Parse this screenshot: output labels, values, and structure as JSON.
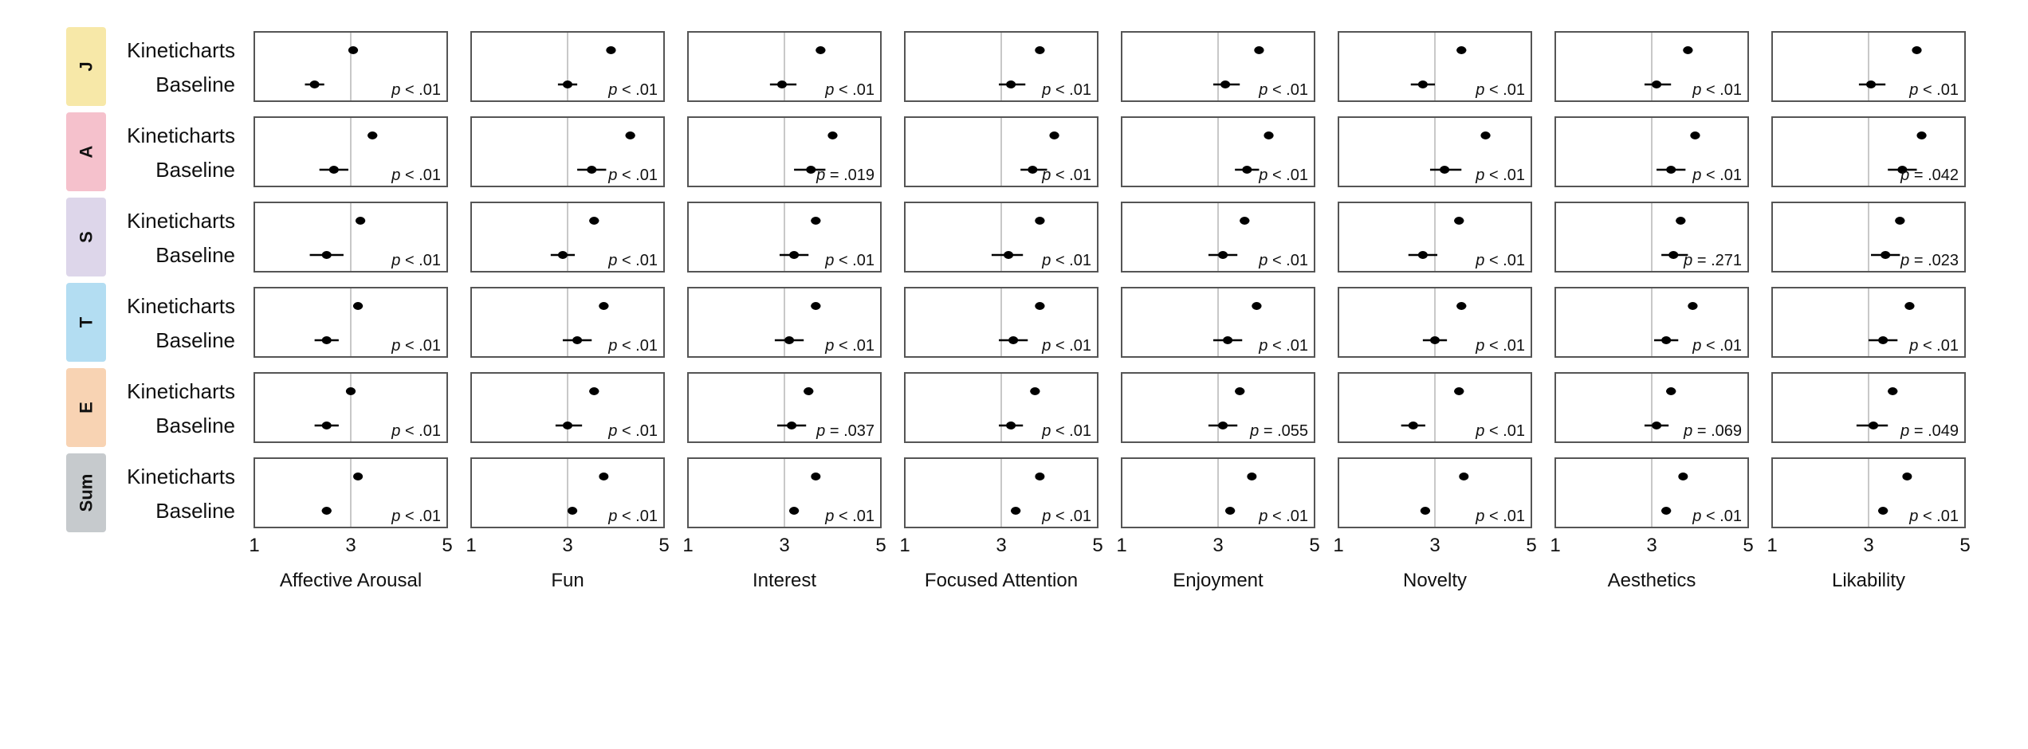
{
  "chart_data": {
    "type": "scatter",
    "variant": "dot-and-interval (mean with confidence interval) small multiples",
    "groups": [
      "J",
      "A",
      "S",
      "T",
      "E",
      "Sum"
    ],
    "group_colors": {
      "J": "#f7e8a8",
      "A": "#f5c1cc",
      "S": "#ddd6ea",
      "T": "#b3ddf2",
      "E": "#f8d3b3",
      "Sum": "#c6cacd"
    },
    "conditions": [
      "Kineticharts",
      "Baseline"
    ],
    "measures": [
      "Affective Arousal",
      "Fun",
      "Interest",
      "Focused Attention",
      "Enjoyment",
      "Novelty",
      "Aesthetics",
      "Likability"
    ],
    "xlim": [
      1,
      5
    ],
    "x_ticks": [
      1,
      3,
      5
    ],
    "reference_line": 3,
    "p_prefix": "p",
    "p_values": [
      [
        "< .01",
        "< .01",
        "< .01",
        "< .01",
        "< .01",
        "< .01",
        "< .01",
        "< .01"
      ],
      [
        "< .01",
        "< .01",
        "= .019",
        "< .01",
        "< .01",
        "< .01",
        "< .01",
        "= .042"
      ],
      [
        "< .01",
        "< .01",
        "< .01",
        "< .01",
        "< .01",
        "< .01",
        "= .271",
        "= .023"
      ],
      [
        "< .01",
        "< .01",
        "< .01",
        "< .01",
        "< .01",
        "< .01",
        "< .01",
        "< .01"
      ],
      [
        "< .01",
        "< .01",
        "= .037",
        "< .01",
        "= .055",
        "< .01",
        "= .069",
        "= .049"
      ],
      [
        "< .01",
        "< .01",
        "< .01",
        "< .01",
        "< .01",
        "< .01",
        "< .01",
        "< .01"
      ]
    ],
    "series": [
      {
        "name": "Kineticharts",
        "means": [
          [
            3.05,
            3.9,
            3.75,
            3.8,
            3.85,
            3.55,
            3.75,
            4.0
          ],
          [
            3.45,
            4.3,
            4.0,
            4.1,
            4.05,
            4.05,
            3.9,
            4.1
          ],
          [
            3.2,
            3.55,
            3.65,
            3.8,
            3.55,
            3.5,
            3.6,
            3.65
          ],
          [
            3.15,
            3.75,
            3.65,
            3.8,
            3.8,
            3.55,
            3.85,
            3.85
          ],
          [
            3.0,
            3.55,
            3.5,
            3.7,
            3.45,
            3.5,
            3.4,
            3.5
          ],
          [
            3.15,
            3.75,
            3.65,
            3.8,
            3.7,
            3.6,
            3.65,
            3.8
          ]
        ],
        "ci": [
          [
            [
              2.95,
              3.15
            ],
            [
              3.8,
              4.0
            ],
            [
              3.65,
              3.85
            ],
            [
              3.7,
              3.9
            ],
            [
              3.75,
              3.95
            ],
            [
              3.45,
              3.65
            ],
            [
              3.65,
              3.85
            ],
            [
              3.9,
              4.1
            ]
          ],
          [
            [
              3.35,
              3.55
            ],
            [
              4.2,
              4.4
            ],
            [
              3.9,
              4.1
            ],
            [
              4.0,
              4.2
            ],
            [
              3.95,
              4.15
            ],
            [
              3.95,
              4.15
            ],
            [
              3.8,
              4.0
            ],
            [
              4.0,
              4.2
            ]
          ],
          [
            [
              3.1,
              3.3
            ],
            [
              3.45,
              3.65
            ],
            [
              3.55,
              3.75
            ],
            [
              3.7,
              3.9
            ],
            [
              3.45,
              3.65
            ],
            [
              3.4,
              3.6
            ],
            [
              3.5,
              3.7
            ],
            [
              3.55,
              3.75
            ]
          ],
          [
            [
              3.05,
              3.25
            ],
            [
              3.65,
              3.85
            ],
            [
              3.55,
              3.75
            ],
            [
              3.7,
              3.9
            ],
            [
              3.7,
              3.9
            ],
            [
              3.45,
              3.65
            ],
            [
              3.75,
              3.95
            ],
            [
              3.75,
              3.95
            ]
          ],
          [
            [
              2.9,
              3.1
            ],
            [
              3.45,
              3.65
            ],
            [
              3.4,
              3.6
            ],
            [
              3.6,
              3.8
            ],
            [
              3.35,
              3.55
            ],
            [
              3.4,
              3.6
            ],
            [
              3.3,
              3.5
            ],
            [
              3.4,
              3.6
            ]
          ],
          [
            [
              3.1,
              3.2
            ],
            [
              3.7,
              3.8
            ],
            [
              3.6,
              3.7
            ],
            [
              3.75,
              3.85
            ],
            [
              3.65,
              3.75
            ],
            [
              3.55,
              3.65
            ],
            [
              3.6,
              3.7
            ],
            [
              3.75,
              3.85
            ]
          ]
        ]
      },
      {
        "name": "Baseline",
        "means": [
          [
            2.25,
            3.0,
            2.95,
            3.2,
            3.15,
            2.75,
            3.1,
            3.05
          ],
          [
            2.65,
            3.5,
            3.55,
            3.65,
            3.6,
            3.2,
            3.4,
            3.7
          ],
          [
            2.5,
            2.9,
            3.2,
            3.15,
            3.1,
            2.75,
            3.45,
            3.35
          ],
          [
            2.5,
            3.2,
            3.1,
            3.25,
            3.2,
            3.0,
            3.3,
            3.3
          ],
          [
            2.5,
            3.0,
            3.15,
            3.2,
            3.1,
            2.55,
            3.1,
            3.1
          ],
          [
            2.5,
            3.1,
            3.2,
            3.3,
            3.25,
            2.8,
            3.3,
            3.3
          ]
        ],
        "ci": [
          [
            [
              2.05,
              2.45
            ],
            [
              2.8,
              3.2
            ],
            [
              2.7,
              3.25
            ],
            [
              2.95,
              3.5
            ],
            [
              2.9,
              3.45
            ],
            [
              2.5,
              3.0
            ],
            [
              2.85,
              3.4
            ],
            [
              2.8,
              3.35
            ]
          ],
          [
            [
              2.35,
              2.95
            ],
            [
              3.2,
              3.8
            ],
            [
              3.2,
              3.85
            ],
            [
              3.4,
              3.95
            ],
            [
              3.35,
              3.85
            ],
            [
              2.9,
              3.55
            ],
            [
              3.1,
              3.7
            ],
            [
              3.4,
              4.0
            ]
          ],
          [
            [
              2.15,
              2.85
            ],
            [
              2.65,
              3.15
            ],
            [
              2.9,
              3.5
            ],
            [
              2.8,
              3.45
            ],
            [
              2.8,
              3.4
            ],
            [
              2.45,
              3.05
            ],
            [
              3.2,
              3.75
            ],
            [
              3.05,
              3.65
            ]
          ],
          [
            [
              2.25,
              2.75
            ],
            [
              2.9,
              3.5
            ],
            [
              2.8,
              3.4
            ],
            [
              2.95,
              3.55
            ],
            [
              2.9,
              3.5
            ],
            [
              2.75,
              3.25
            ],
            [
              3.05,
              3.55
            ],
            [
              3.0,
              3.6
            ]
          ],
          [
            [
              2.25,
              2.75
            ],
            [
              2.75,
              3.3
            ],
            [
              2.85,
              3.45
            ],
            [
              2.95,
              3.45
            ],
            [
              2.8,
              3.4
            ],
            [
              2.3,
              2.8
            ],
            [
              2.85,
              3.35
            ],
            [
              2.75,
              3.4
            ]
          ],
          [
            [
              2.4,
              2.6
            ],
            [
              3.0,
              3.2
            ],
            [
              3.1,
              3.3
            ],
            [
              3.2,
              3.4
            ],
            [
              3.15,
              3.35
            ],
            [
              2.7,
              2.9
            ],
            [
              3.2,
              3.4
            ],
            [
              3.2,
              3.4
            ]
          ]
        ]
      }
    ],
    "title": "",
    "xlabel": "",
    "ylabel": "",
    "grid": false,
    "legend": "none"
  }
}
